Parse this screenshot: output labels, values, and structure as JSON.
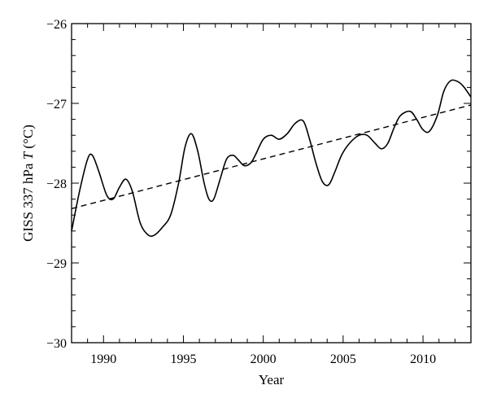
{
  "chart_data": {
    "type": "line",
    "xlabel": "Year",
    "ylabel_prefix": "GISS 337 hPa ",
    "ylabel_var": "T",
    "ylabel_suffix": " (°C)",
    "xlim": [
      1988,
      2013
    ],
    "ylim": [
      -30,
      -26
    ],
    "x_ticks": [
      1990,
      1995,
      2000,
      2005,
      2010
    ],
    "x_tick_labels": [
      "1990",
      "1995",
      "2000",
      "2005",
      "2010"
    ],
    "y_ticks": [
      -30,
      -29,
      -28,
      -27,
      -26
    ],
    "y_tick_labels": [
      "−30",
      "−29",
      "−28",
      "−27",
      "−26"
    ],
    "grid": false,
    "series": [
      {
        "style": "solid",
        "x": [
          1988.0,
          1988.5,
          1989.0,
          1989.3,
          1989.7,
          1990.2,
          1990.6,
          1991.0,
          1991.4,
          1991.8,
          1992.3,
          1992.8,
          1993.2,
          1993.7,
          1994.2,
          1994.7,
          1995.1,
          1995.5,
          1995.9,
          1996.3,
          1996.6,
          1996.9,
          1997.3,
          1997.7,
          1998.1,
          1998.4,
          1998.8,
          1999.2,
          1999.5,
          2000.0,
          2000.5,
          2001.0,
          2001.5,
          2002.0,
          2002.5,
          2002.9,
          2003.3,
          2003.7,
          2004.1,
          2004.5,
          2004.9,
          2005.4,
          2006.0,
          2006.5,
          2007.0,
          2007.4,
          2007.8,
          2008.2,
          2008.6,
          2009.2,
          2009.6,
          2010.0,
          2010.4,
          2010.9,
          2011.3,
          2011.7,
          2012.1,
          2012.5,
          2013.0
        ],
        "y": [
          -28.6,
          -28.1,
          -27.7,
          -27.65,
          -27.85,
          -28.15,
          -28.2,
          -28.05,
          -27.95,
          -28.1,
          -28.5,
          -28.65,
          -28.65,
          -28.55,
          -28.4,
          -28.0,
          -27.55,
          -27.38,
          -27.6,
          -28.0,
          -28.2,
          -28.2,
          -27.95,
          -27.7,
          -27.65,
          -27.7,
          -27.78,
          -27.75,
          -27.65,
          -27.45,
          -27.4,
          -27.45,
          -27.38,
          -27.25,
          -27.22,
          -27.45,
          -27.75,
          -27.98,
          -28.02,
          -27.85,
          -27.65,
          -27.5,
          -27.4,
          -27.4,
          -27.5,
          -27.57,
          -27.5,
          -27.3,
          -27.15,
          -27.1,
          -27.2,
          -27.33,
          -27.35,
          -27.15,
          -26.85,
          -26.72,
          -26.72,
          -26.78,
          -26.92
        ]
      },
      {
        "style": "dashed",
        "x": [
          1988.0,
          2013.0
        ],
        "y": [
          -28.32,
          -27.02
        ]
      }
    ]
  }
}
